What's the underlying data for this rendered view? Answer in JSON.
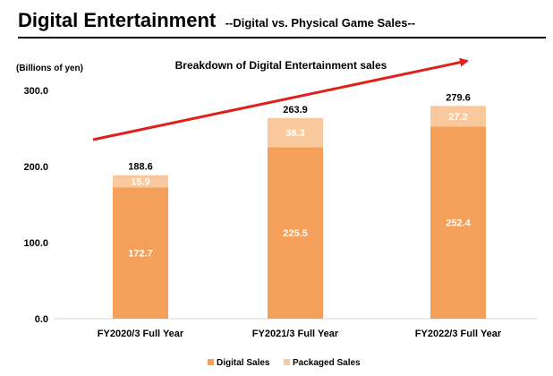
{
  "header": {
    "title": "Digital Entertainment",
    "subtitle": "--Digital vs. Physical Game Sales--"
  },
  "chart_data": {
    "type": "bar",
    "stacked": true,
    "title": "Breakdown of Digital Entertainment sales",
    "ylabel": "(Billions of yen)",
    "ylim": [
      0,
      300
    ],
    "y_ticks": [
      "0.0",
      "100.0",
      "200.0",
      "300.0"
    ],
    "categories": [
      "FY2020/3 Full Year",
      "FY2021/3 Full Year",
      "FY2022/3 Full Year"
    ],
    "series": [
      {
        "name": "Digital Sales",
        "values": [
          172.7,
          225.5,
          252.4
        ],
        "labels": [
          "172.7",
          "225.5",
          "252.4"
        ],
        "color": "#f5a05a"
      },
      {
        "name": "Packaged Sales",
        "values": [
          15.9,
          38.3,
          27.2
        ],
        "labels": [
          "15.9",
          "38.3",
          "27.2"
        ],
        "color": "#f9c89c"
      }
    ],
    "totals": [
      "188.6",
      "263.9",
      "279.6"
    ],
    "grid": false,
    "legend_position": "bottom",
    "trend_arrow_color": "#e0201b"
  }
}
